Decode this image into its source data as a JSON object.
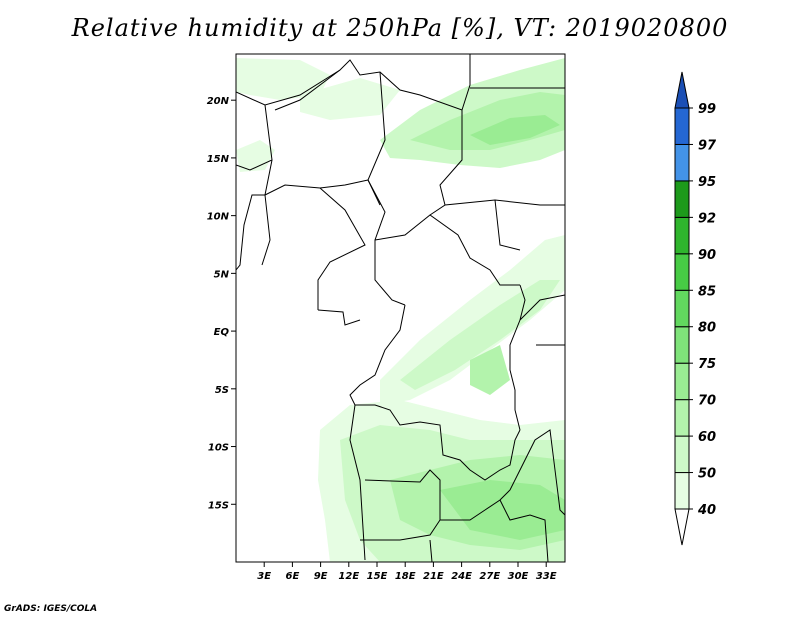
{
  "title": "Relative humidity at 250hPa [%], VT: 2019020800",
  "credit": "GrADS: IGES/COLA",
  "map": {
    "region": "Central Africa",
    "lon_range": [
      0,
      35
    ],
    "lat_range": [
      -20,
      24
    ],
    "lat_ticks": [
      "20N",
      "15N",
      "10N",
      "5N",
      "EQ",
      "5S",
      "10S",
      "15S"
    ],
    "lat_tick_values": [
      20,
      15,
      10,
      5,
      0,
      -5,
      -10,
      -15
    ],
    "lon_ticks": [
      "3E",
      "6E",
      "9E",
      "12E",
      "15E",
      "18E",
      "21E",
      "24E",
      "27E",
      "30E",
      "33E"
    ],
    "lon_tick_values": [
      3,
      6,
      9,
      12,
      15,
      18,
      21,
      24,
      27,
      30,
      33
    ]
  },
  "colorbar": {
    "levels": [
      "40",
      "50",
      "60",
      "70",
      "75",
      "80",
      "85",
      "90",
      "92",
      "95",
      "97",
      "99"
    ],
    "colors": [
      "#ffffff",
      "#e6fde3",
      "#cdf9c8",
      "#b3f3ac",
      "#9aec93",
      "#7fe37a",
      "#62d85f",
      "#47cb45",
      "#2fb52d",
      "#1d9a1b",
      "#4393e8",
      "#2467d3",
      "#1b4fb5"
    ],
    "units": "%"
  }
}
